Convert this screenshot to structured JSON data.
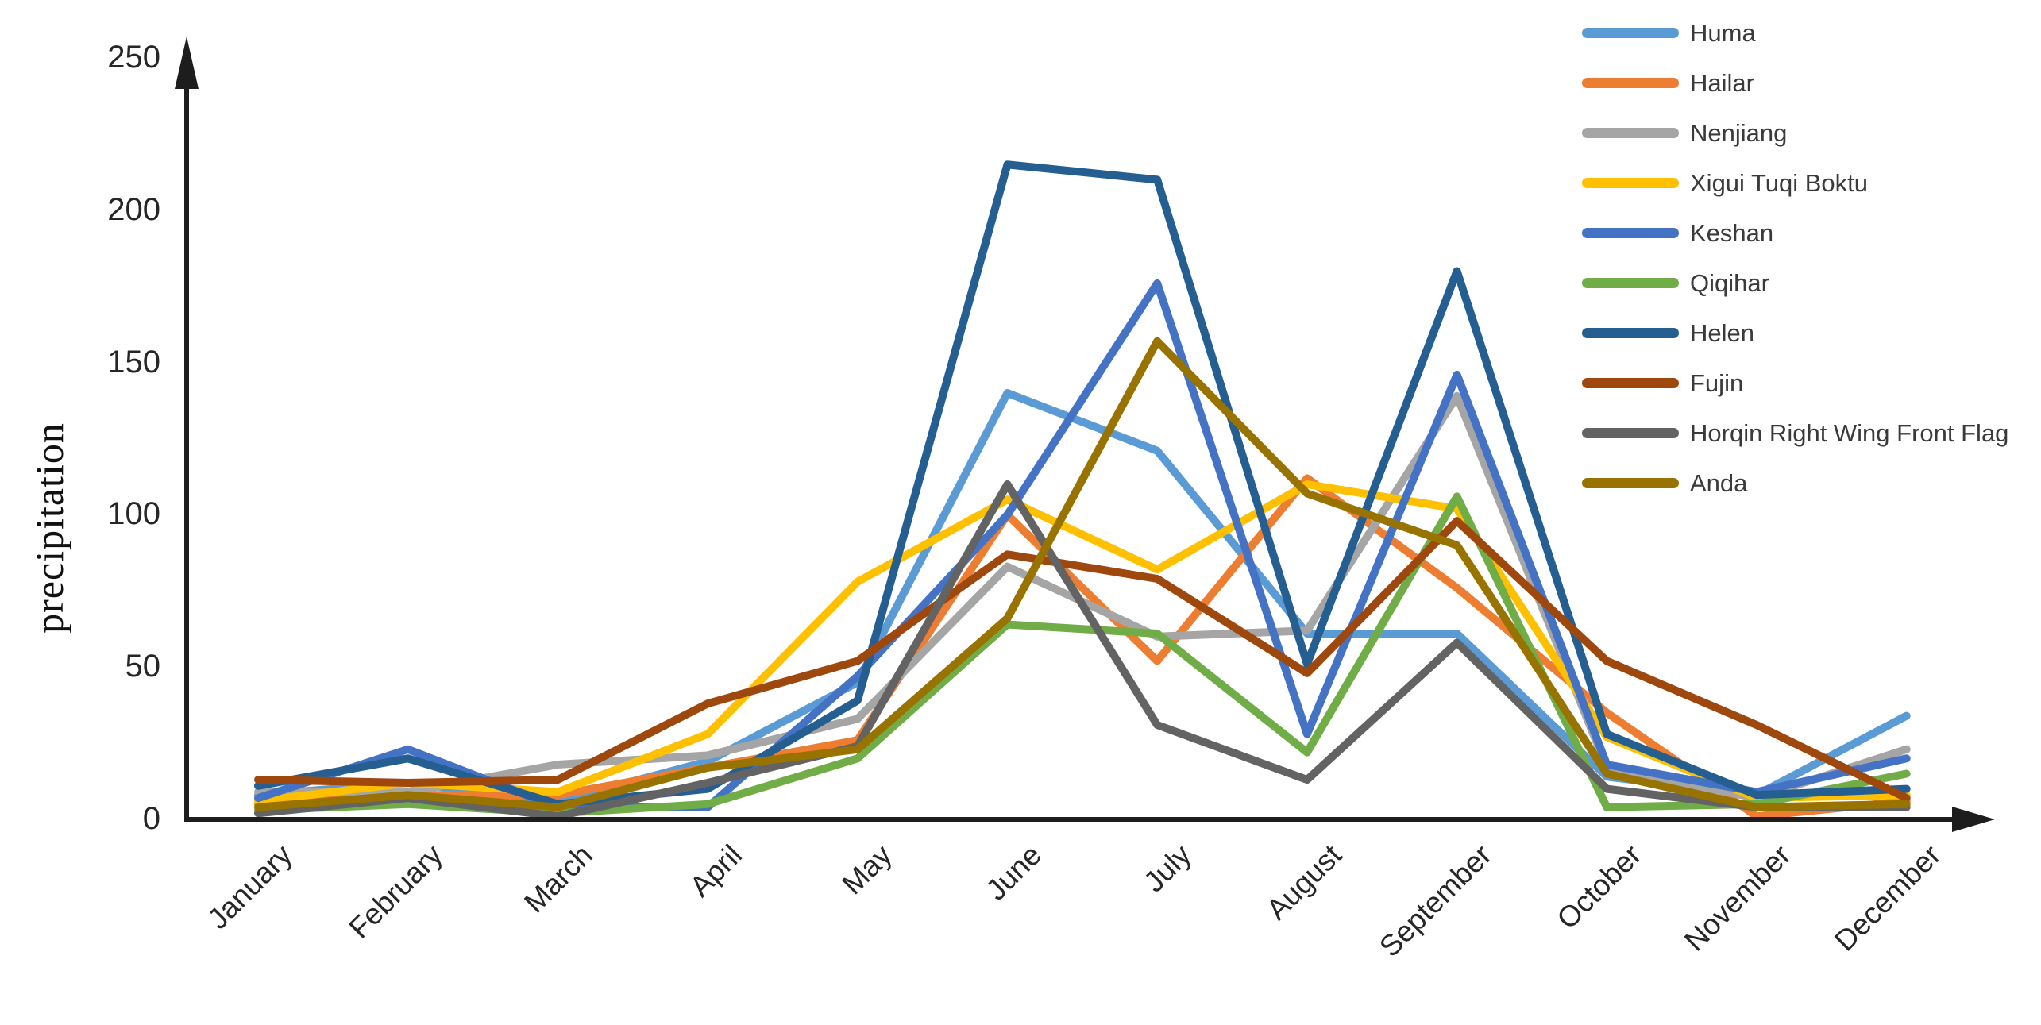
{
  "chart_data": {
    "type": "line",
    "title": "",
    "xlabel": "",
    "ylabel": "precipitation",
    "ylim": [
      0,
      250
    ],
    "yticks": [
      250,
      200,
      150,
      100,
      50,
      0
    ],
    "grid": false,
    "legend_position": "top-right",
    "categories": [
      "January",
      "February",
      "March",
      "April",
      "May",
      "June",
      "July",
      "August",
      "September",
      "October",
      "November",
      "December"
    ],
    "series": [
      {
        "name": "Huma",
        "color": "#5B9BD5",
        "values": [
          8,
          12,
          6,
          19,
          45,
          140,
          121,
          61,
          61,
          14,
          8,
          34
        ]
      },
      {
        "name": "Hailar",
        "color": "#ED7D31",
        "values": [
          5,
          8,
          8,
          17,
          26,
          100,
          52,
          112,
          76,
          35,
          1,
          6
        ]
      },
      {
        "name": "Nenjiang",
        "color": "#A5A5A5",
        "values": [
          9,
          9,
          18,
          21,
          33,
          83,
          60,
          62,
          139,
          17,
          7,
          23
        ]
      },
      {
        "name": "Xigui Tuqi Boktu",
        "color": "#FFC000",
        "values": [
          6,
          12,
          9,
          28,
          78,
          105,
          82,
          110,
          102,
          27,
          7,
          8
        ]
      },
      {
        "name": "Keshan",
        "color": "#4472C4",
        "values": [
          7,
          23,
          4,
          4,
          47,
          100,
          176,
          28,
          146,
          18,
          9,
          20
        ]
      },
      {
        "name": "Qiqihar",
        "color": "#70AD47",
        "values": [
          3,
          5,
          2,
          5,
          20,
          64,
          61,
          22,
          106,
          4,
          5,
          15
        ]
      },
      {
        "name": "Helen",
        "color": "#255E91",
        "values": [
          11,
          20,
          5,
          10,
          39,
          215,
          210,
          51,
          180,
          28,
          8,
          10
        ]
      },
      {
        "name": "Fujin",
        "color": "#9E480E",
        "values": [
          13,
          12,
          13,
          38,
          52,
          87,
          79,
          48,
          98,
          52,
          31,
          7
        ]
      },
      {
        "name": "Horqin Right Wing Front Flag",
        "color": "#636363",
        "values": [
          2,
          7,
          1,
          12,
          24,
          110,
          31,
          13,
          58,
          10,
          4,
          4
        ]
      },
      {
        "name": "Anda",
        "color": "#997300",
        "values": [
          4,
          8,
          4,
          17,
          23,
          66,
          157,
          107,
          90,
          15,
          4,
          5
        ]
      }
    ]
  }
}
